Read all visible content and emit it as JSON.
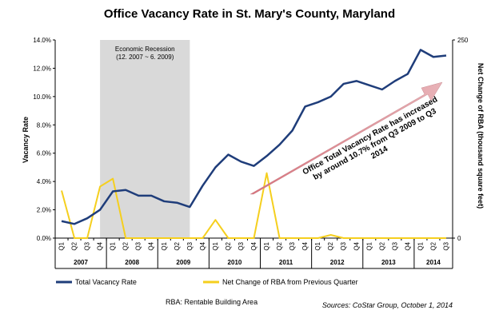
{
  "chart_data": {
    "type": "line",
    "title": "Office Vacancy Rate in St. Mary's County, Maryland",
    "ylabel": "Vacancy Rate",
    "y2label": "Net Change of RBA (thousand square feet)",
    "ylim": [
      0,
      14
    ],
    "y2lim": [
      0,
      250
    ],
    "yticks": [
      "0.0%",
      "2.0%",
      "4.0%",
      "6.0%",
      "8.0%",
      "10.0%",
      "12.0%",
      "14.0%"
    ],
    "y2ticks": [
      "0",
      "250"
    ],
    "quarters": [
      "Q1",
      "Q2",
      "Q3",
      "Q4",
      "Q1",
      "Q2",
      "Q3",
      "Q4",
      "Q1",
      "Q2",
      "Q3",
      "Q4",
      "Q1",
      "Q2",
      "Q3",
      "Q4",
      "Q1",
      "Q2",
      "Q3",
      "Q4",
      "Q1",
      "Q2",
      "Q3",
      "Q4",
      "Q1",
      "Q2",
      "Q3",
      "Q4",
      "Q1",
      "Q2",
      "Q3"
    ],
    "years": [
      {
        "label": "2007",
        "start": 0,
        "count": 4
      },
      {
        "label": "2008",
        "start": 4,
        "count": 4
      },
      {
        "label": "2009",
        "start": 8,
        "count": 4
      },
      {
        "label": "2010",
        "start": 12,
        "count": 4
      },
      {
        "label": "2011",
        "start": 16,
        "count": 4
      },
      {
        "label": "2012",
        "start": 20,
        "count": 4
      },
      {
        "label": "2013",
        "start": 24,
        "count": 4
      },
      {
        "label": "2014",
        "start": 28,
        "count": 3
      }
    ],
    "series": [
      {
        "name": "Total Vacancy Rate",
        "axis": "left",
        "color": "#1f3d7a",
        "values": [
          1.2,
          1.0,
          1.4,
          2.0,
          3.3,
          3.4,
          3.0,
          3.0,
          2.6,
          2.5,
          2.2,
          3.7,
          5.0,
          5.9,
          5.4,
          5.1,
          5.8,
          6.6,
          7.6,
          9.3,
          9.6,
          10.0,
          10.9,
          11.1,
          10.8,
          10.5,
          11.1,
          11.6,
          13.3,
          12.8,
          12.9
        ]
      },
      {
        "name": "Net Change of RBA from Previous Quarter",
        "axis": "right",
        "color": "#f5cf1e",
        "values": [
          60,
          0,
          0,
          65,
          75,
          0,
          0,
          0,
          0,
          0,
          0,
          0,
          23,
          0,
          0,
          0,
          82,
          0,
          0,
          0,
          0,
          4,
          0,
          0,
          0,
          0,
          0,
          0,
          0,
          0,
          0
        ]
      }
    ],
    "recession": {
      "label_line1": "Economic Recession",
      "label_line2": "(12. 2007 ~ 6. 2009)",
      "from_index": 3,
      "to_index": 10
    },
    "annotation": {
      "line1": "Office Total Vacancy Rate has increased",
      "line2": "by around 10.7% from Q3 2009 to Q3",
      "line3": "2014"
    },
    "footnote": "RBA: Rentable Building Area",
    "source": "Sources:  CoStar Group, October 1, 2014",
    "legend_position": "bottom-left"
  }
}
